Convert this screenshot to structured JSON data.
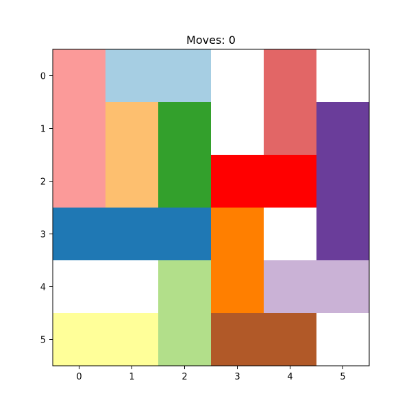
{
  "title": "Moves: 0",
  "grid": {
    "rows": 6,
    "cols": 6
  },
  "axes": {
    "x_ticks": [
      "0",
      "1",
      "2",
      "3",
      "4",
      "5"
    ],
    "y_ticks": [
      "0",
      "1",
      "2",
      "3",
      "4",
      "5"
    ]
  },
  "pieces": [
    {
      "name": "piece-pink-vertical",
      "color": "#fb9a99",
      "row": 0,
      "col": 0,
      "h": 3,
      "w": 1
    },
    {
      "name": "piece-lightblue-horizontal",
      "color": "#a6cee3",
      "row": 0,
      "col": 1,
      "h": 1,
      "w": 2
    },
    {
      "name": "piece-salmon-vertical",
      "color": "#e26666",
      "row": 0,
      "col": 4,
      "h": 2,
      "w": 1
    },
    {
      "name": "piece-tan-vertical",
      "color": "#fdbf6f",
      "row": 1,
      "col": 1,
      "h": 2,
      "w": 1
    },
    {
      "name": "piece-green-vertical",
      "color": "#33a02c",
      "row": 1,
      "col": 2,
      "h": 2,
      "w": 1
    },
    {
      "name": "piece-purple-vertical",
      "color": "#6a3d9a",
      "row": 1,
      "col": 5,
      "h": 3,
      "w": 1
    },
    {
      "name": "piece-red-target",
      "color": "#ff0000",
      "row": 2,
      "col": 3,
      "h": 1,
      "w": 2
    },
    {
      "name": "piece-blue-horizontal",
      "color": "#1f78b4",
      "row": 3,
      "col": 0,
      "h": 1,
      "w": 3
    },
    {
      "name": "piece-orange-vertical",
      "color": "#ff7f00",
      "row": 3,
      "col": 3,
      "h": 2,
      "w": 1
    },
    {
      "name": "piece-lightgreen-vertical",
      "color": "#b2df8a",
      "row": 4,
      "col": 2,
      "h": 2,
      "w": 1
    },
    {
      "name": "piece-lavender-horizontal",
      "color": "#cab2d6",
      "row": 4,
      "col": 4,
      "h": 1,
      "w": 2
    },
    {
      "name": "piece-yellow-horizontal",
      "color": "#ffff99",
      "row": 5,
      "col": 0,
      "h": 1,
      "w": 2
    },
    {
      "name": "piece-brown-horizontal",
      "color": "#b15928",
      "row": 5,
      "col": 3,
      "h": 1,
      "w": 2
    }
  ]
}
